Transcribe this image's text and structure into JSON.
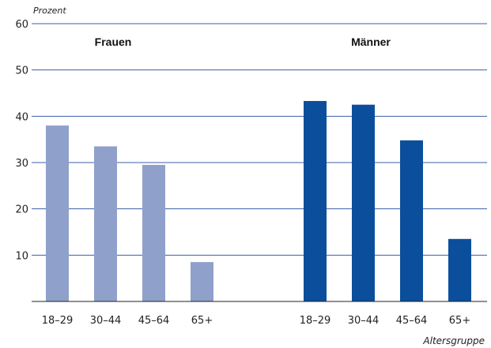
{
  "chart_data": {
    "type": "bar",
    "unit_label": "Prozent",
    "xlabel": "Altersgruppe",
    "ylim": [
      0,
      60
    ],
    "yticks": [
      10,
      20,
      30,
      40,
      50,
      60
    ],
    "grid": true,
    "categories": [
      "18–29",
      "30–44",
      "45–64",
      "65+"
    ],
    "series": [
      {
        "name": "Frauen",
        "color": "#8fa0cb",
        "values": [
          38,
          33.5,
          29.5,
          8.5
        ]
      },
      {
        "name": "Männer",
        "color": "#0b4f9c",
        "values": [
          43.3,
          42.5,
          34.8,
          13.5
        ]
      }
    ]
  }
}
